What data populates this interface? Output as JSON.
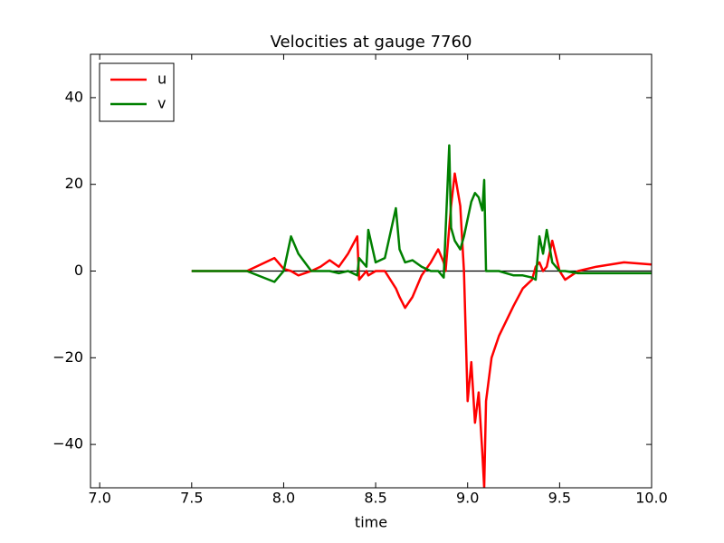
{
  "chart_data": {
    "type": "line",
    "title": "Velocities at gauge 7760",
    "xlabel": "time",
    "x": [
      7.5,
      7.8,
      7.95,
      8.0,
      8.04,
      8.08,
      8.15,
      8.2,
      8.25,
      8.3,
      8.35,
      8.4,
      8.41,
      8.45,
      8.46,
      8.5,
      8.55,
      8.61,
      8.63,
      8.66,
      8.7,
      8.75,
      8.8,
      8.84,
      8.87,
      8.88,
      8.9,
      8.91,
      8.93,
      8.96,
      8.98,
      9.0,
      9.02,
      9.04,
      9.06,
      9.08,
      9.09,
      9.1,
      9.13,
      9.17,
      9.25,
      9.3,
      9.35,
      9.37,
      9.39,
      9.41,
      9.43,
      9.46,
      9.5,
      9.53,
      9.6,
      9.7,
      9.85,
      10.0
    ],
    "series": [
      {
        "name": "u",
        "color": "#ff0000",
        "values": [
          0,
          0,
          3,
          0.5,
          0,
          -1,
          0,
          1,
          2.5,
          1,
          4,
          8,
          -2,
          0,
          -1,
          0,
          0,
          -4,
          -6,
          -8.5,
          -6,
          -1,
          2,
          5,
          2,
          0,
          10,
          15,
          22.5,
          15,
          0,
          -30,
          -21,
          -35,
          -28,
          -42,
          -50,
          -30,
          -20,
          -15,
          -8,
          -4,
          -2,
          1,
          2,
          0,
          1,
          7,
          0,
          -2,
          0,
          1,
          2,
          1.5
        ]
      },
      {
        "name": "v",
        "color": "#008000",
        "values": [
          0,
          0,
          -2.5,
          0,
          8,
          4,
          0,
          0,
          0,
          -0.5,
          0,
          -1,
          3,
          1,
          9.5,
          2,
          3,
          14.5,
          5,
          2,
          2.5,
          1,
          0,
          0,
          -1.5,
          9,
          29,
          10,
          7,
          5,
          8,
          12,
          16,
          18,
          17,
          14,
          21,
          0,
          0,
          0,
          -1,
          -1,
          -1.5,
          -2,
          8,
          4,
          9.5,
          2,
          0,
          0,
          -0.5,
          -0.5,
          -0.5,
          -0.5
        ]
      }
    ],
    "xlim": [
      6.95,
      10.0
    ],
    "ylim": [
      -50,
      50
    ],
    "xticks": [
      {
        "value": 7,
        "label": "7.0"
      },
      7.5,
      {
        "value": 8,
        "label": "8.0"
      },
      8.5,
      {
        "value": 9,
        "label": "9.0"
      },
      9.5,
      {
        "value": 10,
        "label": "10.0"
      }
    ],
    "yticks": [
      {
        "value": -40,
        "label": "−40"
      },
      {
        "value": -20,
        "label": "−20"
      },
      0,
      20,
      40
    ],
    "legend": "upper left",
    "grid": false
  }
}
